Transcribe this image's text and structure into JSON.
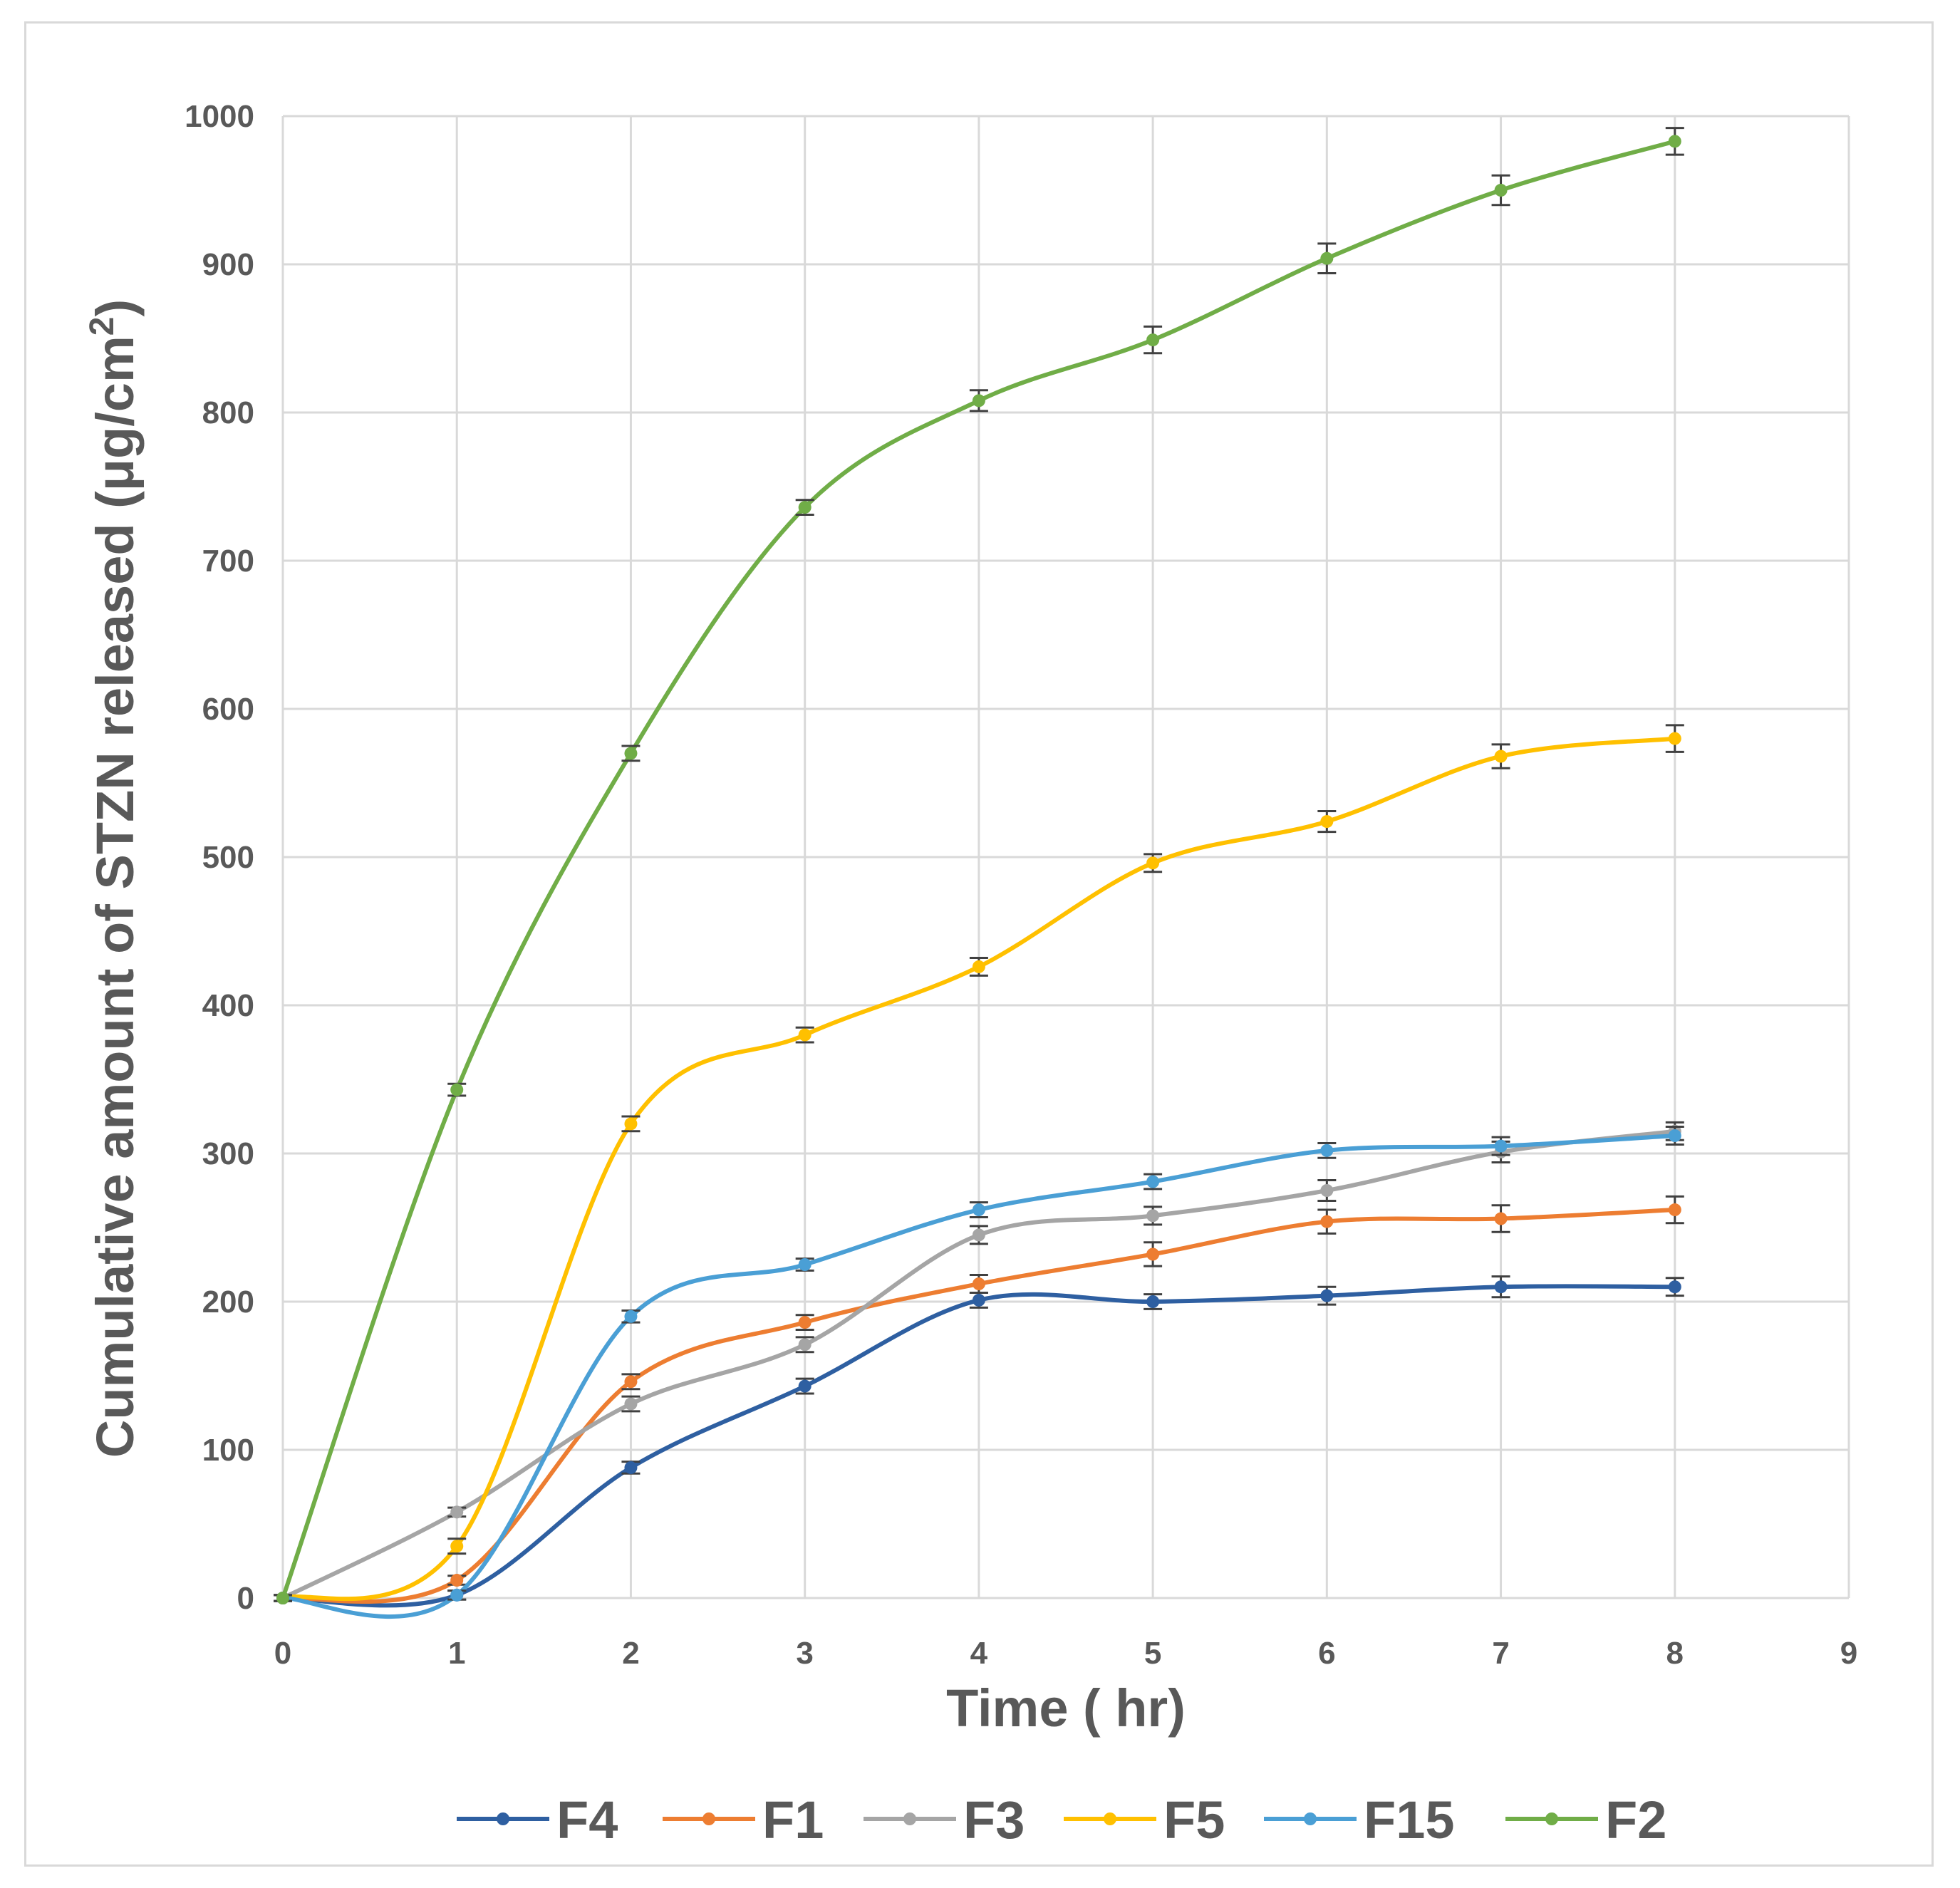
{
  "chart_data": {
    "type": "line",
    "title": "",
    "xlabel": "Time ( hr)",
    "ylabel": "Cumulative amount of STZN released (μg/cm²)",
    "xlim": [
      0,
      9
    ],
    "ylim": [
      0,
      1000
    ],
    "x_ticks": [
      0,
      1,
      2,
      3,
      4,
      5,
      6,
      7,
      8,
      9
    ],
    "y_ticks": [
      0,
      100,
      200,
      300,
      400,
      500,
      600,
      700,
      800,
      900,
      1000
    ],
    "grid": true,
    "legend_position": "bottom",
    "x": [
      0,
      1,
      2,
      3,
      4,
      5,
      6,
      7,
      8
    ],
    "series": [
      {
        "name": "F4",
        "color": "#2e5fa1",
        "values": [
          0,
          2,
          88,
          143,
          201,
          200,
          204,
          210,
          210
        ],
        "errors": [
          2,
          3,
          4,
          5,
          5,
          5,
          6,
          7,
          6
        ]
      },
      {
        "name": "F1",
        "color": "#ed7d31",
        "values": [
          0,
          12,
          146,
          186,
          212,
          232,
          254,
          256,
          262
        ],
        "errors": [
          2,
          3,
          5,
          5,
          6,
          8,
          8,
          9,
          9
        ]
      },
      {
        "name": "F3",
        "color": "#a5a5a5",
        "values": [
          0,
          58,
          131,
          171,
          245,
          258,
          275,
          301,
          315
        ],
        "errors": [
          2,
          3,
          5,
          5,
          6,
          6,
          7,
          7,
          6
        ]
      },
      {
        "name": "F5",
        "color": "#ffc000",
        "values": [
          0,
          35,
          320,
          380,
          426,
          496,
          524,
          568,
          580
        ],
        "errors": [
          2,
          5,
          5,
          5,
          6,
          6,
          7,
          8,
          9
        ]
      },
      {
        "name": "F15",
        "color": "#4a9fd5",
        "values": [
          0,
          2,
          190,
          225,
          262,
          281,
          302,
          305,
          312
        ],
        "errors": [
          2,
          3,
          4,
          4,
          5,
          5,
          5,
          6,
          6
        ]
      },
      {
        "name": "F2",
        "color": "#70ad47",
        "values": [
          0,
          343,
          570,
          736,
          808,
          849,
          904,
          950,
          983
        ],
        "errors": [
          2,
          4,
          5,
          5,
          7,
          9,
          10,
          10,
          9
        ]
      }
    ]
  }
}
